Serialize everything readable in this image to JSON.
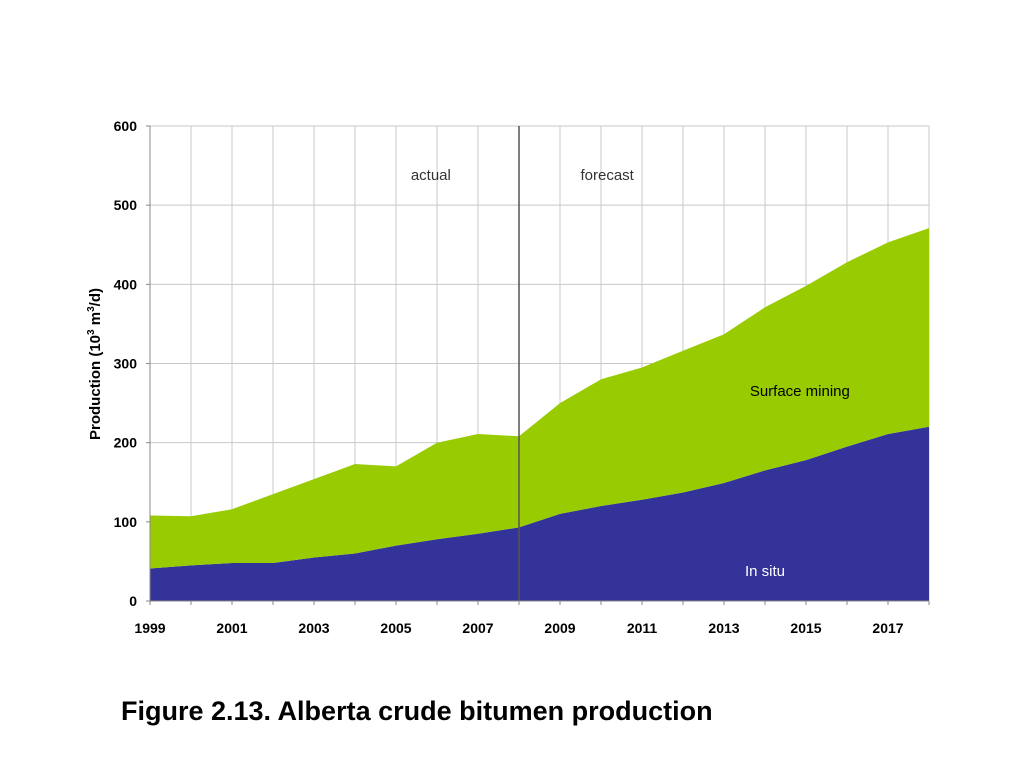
{
  "caption": "Figure 2.13. Alberta crude bitumen production",
  "chart_data": {
    "type": "area",
    "stacked": true,
    "title": "",
    "xlabel": "",
    "ylabel_parts": [
      "Production (10",
      "3",
      " m",
      "3",
      "/d)"
    ],
    "x": [
      1999,
      2000,
      2001,
      2002,
      2003,
      2004,
      2005,
      2006,
      2007,
      2008,
      2009,
      2010,
      2011,
      2012,
      2013,
      2014,
      2015,
      2016,
      2017,
      2018
    ],
    "xlim": [
      1999,
      2018
    ],
    "ylim": [
      0,
      600
    ],
    "xticks": [
      "1999",
      "2001",
      "2003",
      "2005",
      "2007",
      "2009",
      "2011",
      "2013",
      "2015",
      "2017"
    ],
    "yticks": [
      "0",
      "100",
      "200",
      "300",
      "400",
      "500",
      "600"
    ],
    "grid": true,
    "series": [
      {
        "name": "In situ",
        "color": "#333399",
        "label_color": "#ffffff",
        "values": [
          41,
          45,
          48,
          48,
          55,
          60,
          70,
          78,
          85,
          93,
          110,
          120,
          128,
          137,
          149,
          165,
          178,
          195,
          211,
          220
        ]
      },
      {
        "name": "Surface mining",
        "color": "#99cc00",
        "label_color": "#000000",
        "values": [
          67,
          62,
          68,
          87,
          99,
          113,
          100,
          122,
          126,
          115,
          140,
          160,
          167,
          179,
          188,
          206,
          220,
          233,
          242,
          251
        ]
      }
    ],
    "divider": {
      "x": 2008,
      "color": "#555555"
    },
    "annotations": [
      {
        "text": "actual",
        "x": 2005.85,
        "y": 538
      },
      {
        "text": "forecast",
        "x": 2010.15,
        "y": 538
      }
    ],
    "series_labels": [
      {
        "series": 1,
        "x": 2014.85,
        "y": 265
      },
      {
        "series": 0,
        "x": 2014.0,
        "y": 38
      }
    ]
  }
}
